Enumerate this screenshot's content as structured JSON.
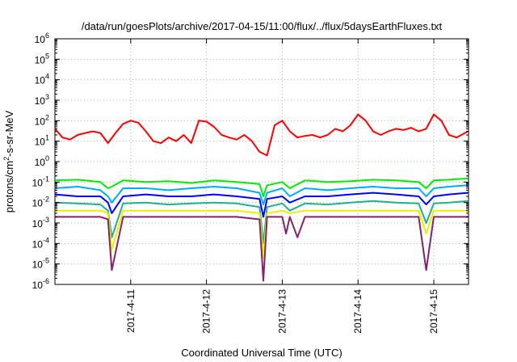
{
  "chart_data": {
    "type": "line",
    "title": "/data/run/goesPlots/archive/2017-04-15/11:00/flux/../flux/5daysEarthFluxes.txt",
    "xlabel": "Coordinated Universal Time (UTC)",
    "ylabel_base": "protons/cm",
    "ylabel_sup": "2",
    "ylabel_rest": "-s-sr-MeV",
    "y_scale": "log",
    "ylim": [
      1e-06,
      1000000.0
    ],
    "xlim": [
      "2017-04-10 00:00",
      "2017-04-15 11:00"
    ],
    "grid": true,
    "legend": "none",
    "x_ticks": [
      "2017-4-11",
      "2017-4-12",
      "2017-4-13",
      "2017-4-14",
      "2017-4-15"
    ],
    "y_ticks": [
      {
        "base": "10",
        "exp": "-6"
      },
      {
        "base": "10",
        "exp": "-5"
      },
      {
        "base": "10",
        "exp": "-4"
      },
      {
        "base": "10",
        "exp": "-3"
      },
      {
        "base": "10",
        "exp": "-2"
      },
      {
        "base": "10",
        "exp": "-1"
      },
      {
        "base": "10",
        "exp": "0"
      },
      {
        "base": "10",
        "exp": "1"
      },
      {
        "base": "10",
        "exp": "2"
      },
      {
        "base": "10",
        "exp": "3"
      },
      {
        "base": "10",
        "exp": "4"
      },
      {
        "base": "10",
        "exp": "5"
      },
      {
        "base": "10",
        "exp": "6"
      }
    ],
    "series": [
      {
        "color": "#ff0000",
        "x_days": [
          0,
          0.1,
          0.2,
          0.3,
          0.4,
          0.5,
          0.6,
          0.7,
          0.8,
          0.9,
          1.0,
          1.1,
          1.2,
          1.3,
          1.4,
          1.5,
          1.6,
          1.7,
          1.8,
          1.9,
          2.0,
          2.1,
          2.2,
          2.3,
          2.4,
          2.5,
          2.6,
          2.7,
          2.8,
          2.9,
          3.0,
          3.1,
          3.2,
          3.3,
          3.4,
          3.5,
          3.6,
          3.7,
          3.8,
          3.9,
          4.0,
          4.1,
          4.2,
          4.3,
          4.4,
          4.5,
          4.6,
          4.7,
          4.8,
          4.9,
          5.0,
          5.1,
          5.2,
          5.3,
          5.45
        ],
        "values": [
          40,
          15,
          12,
          20,
          25,
          30,
          25,
          8,
          25,
          70,
          100,
          80,
          30,
          10,
          8,
          15,
          10,
          20,
          8,
          100,
          90,
          50,
          20,
          15,
          12,
          20,
          10,
          3,
          2,
          60,
          100,
          30,
          15,
          18,
          20,
          15,
          20,
          40,
          30,
          60,
          200,
          100,
          30,
          20,
          30,
          40,
          35,
          45,
          30,
          40,
          200,
          100,
          20,
          15,
          30
        ]
      },
      {
        "color": "#00ee00",
        "x_days": [
          0,
          0.3,
          0.6,
          0.7,
          0.75,
          0.9,
          1.2,
          1.5,
          1.8,
          2.1,
          2.4,
          2.7,
          2.75,
          2.8,
          3.0,
          3.1,
          3.3,
          3.6,
          3.9,
          4.2,
          4.5,
          4.8,
          4.9,
          5.0,
          5.2,
          5.45
        ],
        "values": [
          0.12,
          0.13,
          0.1,
          0.05,
          0.06,
          0.12,
          0.1,
          0.11,
          0.09,
          0.12,
          0.1,
          0.08,
          0.02,
          0.07,
          0.1,
          0.05,
          0.12,
          0.1,
          0.11,
          0.13,
          0.12,
          0.1,
          0.05,
          0.12,
          0.13,
          0.15
        ]
      },
      {
        "color": "#00aaff",
        "x_days": [
          0,
          0.3,
          0.6,
          0.7,
          0.75,
          0.9,
          1.2,
          1.5,
          1.8,
          2.1,
          2.4,
          2.7,
          2.75,
          2.8,
          3.0,
          3.1,
          3.3,
          3.6,
          3.9,
          4.2,
          4.5,
          4.8,
          4.9,
          5.0,
          5.2,
          5.45
        ],
        "values": [
          0.05,
          0.06,
          0.04,
          0.02,
          0.01,
          0.05,
          0.05,
          0.04,
          0.05,
          0.06,
          0.05,
          0.03,
          0.008,
          0.03,
          0.05,
          0.02,
          0.05,
          0.04,
          0.05,
          0.06,
          0.05,
          0.05,
          0.02,
          0.05,
          0.06,
          0.07
        ]
      },
      {
        "color": "#0000ff",
        "x_days": [
          0,
          0.3,
          0.6,
          0.7,
          0.75,
          0.9,
          1.2,
          1.5,
          1.8,
          2.1,
          2.4,
          2.7,
          2.75,
          2.8,
          3.0,
          3.1,
          3.3,
          3.6,
          3.9,
          4.2,
          4.5,
          4.8,
          4.9,
          5.0,
          5.2,
          5.45
        ],
        "values": [
          0.025,
          0.02,
          0.02,
          0.01,
          0.003,
          0.02,
          0.025,
          0.02,
          0.02,
          0.025,
          0.02,
          0.015,
          0.002,
          0.015,
          0.02,
          0.01,
          0.02,
          0.02,
          0.025,
          0.03,
          0.025,
          0.02,
          0.008,
          0.02,
          0.025,
          0.03
        ]
      },
      {
        "color": "#20b090",
        "x_days": [
          0,
          0.3,
          0.6,
          0.7,
          0.75,
          0.9,
          1.2,
          1.5,
          1.8,
          2.1,
          2.4,
          2.7,
          2.75,
          2.8,
          3.0,
          3.1,
          3.3,
          3.6,
          3.9,
          4.2,
          4.5,
          4.8,
          4.9,
          5.0,
          5.2,
          5.45
        ],
        "values": [
          0.01,
          0.009,
          0.008,
          0.004,
          0.0002,
          0.009,
          0.01,
          0.008,
          0.009,
          0.01,
          0.009,
          0.006,
          0.0001,
          0.006,
          0.009,
          0.004,
          0.009,
          0.008,
          0.01,
          0.012,
          0.01,
          0.009,
          0.001,
          0.009,
          0.01,
          0.012
        ]
      },
      {
        "color": "#eeee00",
        "x_days": [
          0,
          0.3,
          0.6,
          0.7,
          0.75,
          0.9,
          1.2,
          1.5,
          1.8,
          2.1,
          2.4,
          2.7,
          2.75,
          2.8,
          3.0,
          3.1,
          3.3,
          3.6,
          3.9,
          4.2,
          4.5,
          4.8,
          4.9,
          5.0,
          5.2,
          5.45
        ],
        "values": [
          0.004,
          0.004,
          0.004,
          0.003,
          5e-05,
          0.004,
          0.004,
          0.004,
          0.004,
          0.004,
          0.004,
          0.003,
          2e-05,
          0.003,
          0.004,
          0.003,
          0.004,
          0.004,
          0.004,
          0.004,
          0.004,
          0.004,
          0.0003,
          0.004,
          0.004,
          0.004
        ]
      },
      {
        "color": "#882266",
        "x_days": [
          0,
          0.3,
          0.6,
          0.7,
          0.75,
          0.9,
          1.2,
          1.5,
          1.8,
          2.1,
          2.4,
          2.7,
          2.75,
          2.8,
          3.0,
          3.05,
          3.1,
          3.2,
          3.3,
          3.6,
          3.9,
          4.2,
          4.5,
          4.8,
          4.9,
          5.0,
          5.2,
          5.45
        ],
        "values": [
          0.002,
          0.002,
          0.002,
          0.0015,
          5e-06,
          0.002,
          0.002,
          0.002,
          0.002,
          0.002,
          0.002,
          0.0015,
          1.5e-06,
          0.002,
          0.002,
          0.0003,
          0.002,
          0.0002,
          0.002,
          0.002,
          0.002,
          0.002,
          0.002,
          0.002,
          5e-06,
          0.002,
          0.002,
          0.002
        ]
      }
    ]
  }
}
